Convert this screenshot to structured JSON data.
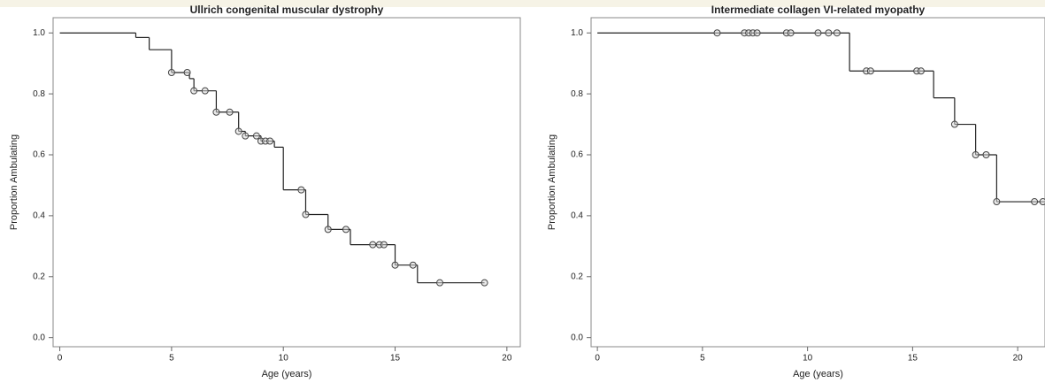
{
  "chart_data": [
    {
      "type": "step",
      "title": "Ullrich congenital muscular dystrophy",
      "xlabel": "Age (years)",
      "ylabel": "Proportion Ambulating",
      "xlim": [
        -0.3,
        20.6
      ],
      "ylim": [
        -0.03,
        1.05
      ],
      "xticks": [
        0,
        5,
        10,
        15,
        20
      ],
      "yticks": [
        {
          "value": 0,
          "label": "0.0"
        },
        {
          "value": 0.2,
          "label": "0.2"
        },
        {
          "value": 0.4,
          "label": "0.4"
        },
        {
          "value": 0.6,
          "label": "0.6"
        },
        {
          "value": 0.8,
          "label": "0.8"
        },
        {
          "value": 1,
          "label": "1.0"
        }
      ],
      "color": "#222222",
      "x": [
        0,
        3.4,
        4.0,
        5.0,
        5.8,
        6.0,
        7.0,
        8.0,
        8.3,
        9.0,
        9.6,
        10.0,
        11.0,
        12.0,
        13.0,
        15.0,
        16.0,
        19.0
      ],
      "values": [
        1.0,
        0.985,
        0.945,
        0.87,
        0.85,
        0.81,
        0.74,
        0.677,
        0.662,
        0.645,
        0.625,
        0.485,
        0.404,
        0.355,
        0.305,
        0.238,
        0.18,
        0.18
      ],
      "censor_x": [
        5.0,
        5.7,
        6.0,
        6.5,
        7.0,
        7.6,
        8.0,
        8.3,
        8.8,
        9.0,
        9.2,
        9.4,
        10.8,
        11.0,
        12.0,
        12.8,
        14.0,
        14.3,
        14.5,
        15.0,
        15.8,
        17.0,
        19.0
      ],
      "censor_values": [
        0.87,
        0.87,
        0.81,
        0.81,
        0.74,
        0.74,
        0.677,
        0.662,
        0.662,
        0.645,
        0.645,
        0.645,
        0.485,
        0.404,
        0.355,
        0.355,
        0.305,
        0.305,
        0.305,
        0.238,
        0.238,
        0.18,
        0.18
      ]
    },
    {
      "type": "step",
      "title": "Intermediate collagen VI-related myopathy",
      "xlabel": "Age (years)",
      "ylabel": "Proportion Ambulating",
      "xlim": [
        -0.3,
        21.3
      ],
      "ylim": [
        -0.03,
        1.05
      ],
      "xticks": [
        0,
        5,
        10,
        15,
        20
      ],
      "yticks": [
        {
          "value": 0,
          "label": "0.0"
        },
        {
          "value": 0.2,
          "label": "0.2"
        },
        {
          "value": 0.4,
          "label": "0.4"
        },
        {
          "value": 0.6,
          "label": "0.6"
        },
        {
          "value": 0.8,
          "label": "0.8"
        },
        {
          "value": 1,
          "label": "1.0"
        }
      ],
      "color": "#222222",
      "x": [
        0,
        12.0,
        16.0,
        17.0,
        18.0,
        19.0,
        21.3
      ],
      "values": [
        1.0,
        0.875,
        0.787,
        0.7,
        0.6,
        0.446,
        0.446
      ],
      "censor_x": [
        5.7,
        7.0,
        7.2,
        7.4,
        7.6,
        9.0,
        9.2,
        10.5,
        11.0,
        11.4,
        12.8,
        13.0,
        15.2,
        15.4,
        17.0,
        18.0,
        18.5,
        19.0,
        20.8,
        21.2
      ],
      "censor_values": [
        1.0,
        1.0,
        1.0,
        1.0,
        1.0,
        1.0,
        1.0,
        1.0,
        1.0,
        1.0,
        0.875,
        0.875,
        0.875,
        0.875,
        0.7,
        0.6,
        0.6,
        0.446,
        0.446,
        0.446
      ]
    }
  ]
}
